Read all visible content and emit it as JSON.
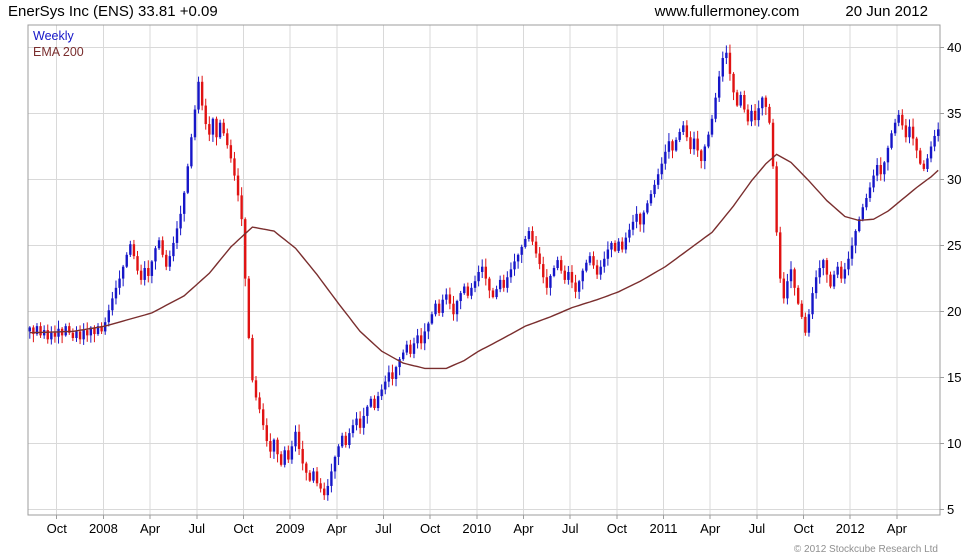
{
  "header": {
    "title": "EnerSys Inc (ENS) 33.81 +0.09",
    "website": "www.fullermoney.com",
    "date": "20 Jun 2012"
  },
  "legend": {
    "weekly": "Weekly",
    "ema": "EMA 200"
  },
  "footer": {
    "copyright": "© 2012 Stockcube Research Ltd"
  },
  "chart_data": {
    "type": "candlestick",
    "title": "EnerSys Inc (ENS) weekly candlesticks with EMA 200 overlay",
    "instrument": "EnerSys Inc",
    "ticker": "ENS",
    "last_price": 33.81,
    "change": 0.09,
    "timeframe": "Weekly",
    "overlay": "EMA 200",
    "y_axis_side": "right",
    "grid": true,
    "legend_position": "top-left",
    "y_ticks": [
      5,
      10,
      15,
      20,
      25,
      30,
      35,
      40
    ],
    "ylim": [
      4.6,
      41.7
    ],
    "x_ticks": [
      {
        "label": "Oct",
        "week": 8
      },
      {
        "label": "2008",
        "week": 21
      },
      {
        "label": "Apr",
        "week": 34
      },
      {
        "label": "Jul",
        "week": 47
      },
      {
        "label": "Oct",
        "week": 60
      },
      {
        "label": "2009",
        "week": 73
      },
      {
        "label": "Apr",
        "week": 86
      },
      {
        "label": "Jul",
        "week": 99
      },
      {
        "label": "Oct",
        "week": 112
      },
      {
        "label": "2010",
        "week": 125
      },
      {
        "label": "Apr",
        "week": 138
      },
      {
        "label": "Jul",
        "week": 151
      },
      {
        "label": "Oct",
        "week": 164
      },
      {
        "label": "2011",
        "week": 177
      },
      {
        "label": "Apr",
        "week": 190
      },
      {
        "label": "Jul",
        "week": 203
      },
      {
        "label": "Oct",
        "week": 216
      },
      {
        "label": "2012",
        "week": 229
      },
      {
        "label": "Apr",
        "week": 242
      }
    ],
    "first_open": 18.5,
    "weekly_closes": [
      18.8,
      18.3,
      18.9,
      18.2,
      18.6,
      17.9,
      18.4,
      18.1,
      18.7,
      18.2,
      18.9,
      18.4,
      18.0,
      18.5,
      17.9,
      18.6,
      18.2,
      18.8,
      18.3,
      18.9,
      18.5,
      19.2,
      20.1,
      21.0,
      21.8,
      22.5,
      23.4,
      24.3,
      25.1,
      24.2,
      23.1,
      22.4,
      23.3,
      22.7,
      23.8,
      24.8,
      25.4,
      24.3,
      23.4,
      24.2,
      25.2,
      26.3,
      27.4,
      29.0,
      31.0,
      33.2,
      35.3,
      37.4,
      35.6,
      34.2,
      33.4,
      34.6,
      33.2,
      34.3,
      33.5,
      32.6,
      31.6,
      30.3,
      28.8,
      27.0,
      22.5,
      18.0,
      14.8,
      13.5,
      12.6,
      11.4,
      10.2,
      9.4,
      10.3,
      9.2,
      8.4,
      9.5,
      8.8,
      9.8,
      10.9,
      9.6,
      8.5,
      7.8,
      7.2,
      7.9,
      7.0,
      6.6,
      6.1,
      6.8,
      7.9,
      9.0,
      9.8,
      10.6,
      9.9,
      10.8,
      11.4,
      11.9,
      11.2,
      12.1,
      12.8,
      13.4,
      12.7,
      13.6,
      14.1,
      14.7,
      15.4,
      14.9,
      15.8,
      16.4,
      16.9,
      17.5,
      16.8,
      17.6,
      18.2,
      17.6,
      18.5,
      19.1,
      19.8,
      20.6,
      19.9,
      20.9,
      21.3,
      20.6,
      19.8,
      20.8,
      21.4,
      21.9,
      21.2,
      21.8,
      22.3,
      23.0,
      23.4,
      22.5,
      21.6,
      21.1,
      21.7,
      22.4,
      21.8,
      22.6,
      23.2,
      23.8,
      24.3,
      24.9,
      25.5,
      26.1,
      25.3,
      24.4,
      23.6,
      22.6,
      21.8,
      22.7,
      23.3,
      23.9,
      23.1,
      22.4,
      23.0,
      22.2,
      21.5,
      22.3,
      23.1,
      23.7,
      24.2,
      23.5,
      22.8,
      23.4,
      24.0,
      24.7,
      25.2,
      24.6,
      25.3,
      24.7,
      25.6,
      26.2,
      26.8,
      27.4,
      26.6,
      27.5,
      28.2,
      28.9,
      29.6,
      30.4,
      31.2,
      32.1,
      32.9,
      32.2,
      33.0,
      33.6,
      34.1,
      33.2,
      32.3,
      33.1,
      32.2,
      31.4,
      32.5,
      33.4,
      34.6,
      36.2,
      37.8,
      39.2,
      39.6,
      38.0,
      36.6,
      35.6,
      36.4,
      35.3,
      34.4,
      35.2,
      34.5,
      35.4,
      36.2,
      35.5,
      34.3,
      31.0,
      26.0,
      22.5,
      21.0,
      22.3,
      23.2,
      21.8,
      20.6,
      19.6,
      18.4,
      19.8,
      21.4,
      22.6,
      23.3,
      23.9,
      22.8,
      21.9,
      22.8,
      23.4,
      22.5,
      23.2,
      24.0,
      25.0,
      26.1,
      27.0,
      27.9,
      28.6,
      29.4,
      30.3,
      31.1,
      30.4,
      31.3,
      32.4,
      33.5,
      34.3,
      34.9,
      34.1,
      33.2,
      34.0,
      33.1,
      32.2,
      31.2,
      30.8,
      31.6,
      32.5,
      33.3,
      33.8
    ],
    "ema_anchors": [
      [
        0,
        18.4
      ],
      [
        12,
        18.5
      ],
      [
        21,
        18.9
      ],
      [
        34,
        19.9
      ],
      [
        43,
        21.2
      ],
      [
        50,
        22.9
      ],
      [
        56,
        24.9
      ],
      [
        62,
        26.4
      ],
      [
        68,
        26.1
      ],
      [
        74,
        24.8
      ],
      [
        80,
        22.8
      ],
      [
        86,
        20.6
      ],
      [
        92,
        18.5
      ],
      [
        98,
        17.0
      ],
      [
        104,
        16.1
      ],
      [
        110,
        15.7
      ],
      [
        116,
        15.7
      ],
      [
        121,
        16.3
      ],
      [
        125,
        17.0
      ],
      [
        132,
        18.0
      ],
      [
        138,
        18.9
      ],
      [
        145,
        19.6
      ],
      [
        151,
        20.3
      ],
      [
        158,
        20.9
      ],
      [
        164,
        21.5
      ],
      [
        170,
        22.3
      ],
      [
        177,
        23.4
      ],
      [
        183,
        24.6
      ],
      [
        190,
        26.0
      ],
      [
        196,
        28.0
      ],
      [
        201,
        29.9
      ],
      [
        205,
        31.2
      ],
      [
        208,
        31.9
      ],
      [
        212,
        31.3
      ],
      [
        217,
        29.9
      ],
      [
        222,
        28.4
      ],
      [
        227,
        27.2
      ],
      [
        231,
        26.9
      ],
      [
        235,
        27.0
      ],
      [
        239,
        27.6
      ],
      [
        243,
        28.5
      ],
      [
        247,
        29.4
      ],
      [
        251,
        30.2
      ],
      [
        253,
        30.7
      ]
    ],
    "colors": {
      "up": "#1616c8",
      "down": "#e01212",
      "ema": "#7a2e2e",
      "grid": "#d9d9d9",
      "axis": "#9c9c9c",
      "text": "#000000",
      "copyright": "#8f8f8f"
    }
  }
}
